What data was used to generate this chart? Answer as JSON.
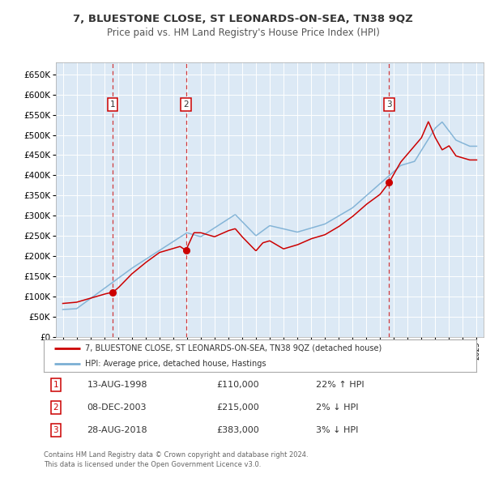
{
  "title": "7, BLUESTONE CLOSE, ST LEONARDS-ON-SEA, TN38 9QZ",
  "subtitle": "Price paid vs. HM Land Registry's House Price Index (HPI)",
  "bg_color": "#dce9f5",
  "grid_color": "#ffffff",
  "hpi_color": "#7bafd4",
  "price_color": "#cc0000",
  "ylim": [
    0,
    680000
  ],
  "yticks": [
    0,
    50000,
    100000,
    150000,
    200000,
    250000,
    300000,
    350000,
    400000,
    450000,
    500000,
    550000,
    600000,
    650000
  ],
  "sales": [
    {
      "year": 1998.62,
      "price": 110000,
      "label": "1"
    },
    {
      "year": 2003.93,
      "price": 215000,
      "label": "2"
    },
    {
      "year": 2018.66,
      "price": 383000,
      "label": "3"
    }
  ],
  "legend_entries": [
    "7, BLUESTONE CLOSE, ST LEONARDS-ON-SEA, TN38 9QZ (detached house)",
    "HPI: Average price, detached house, Hastings"
  ],
  "table_rows": [
    {
      "num": "1",
      "date": "13-AUG-1998",
      "price": "£110,000",
      "hpi": "22% ↑ HPI"
    },
    {
      "num": "2",
      "date": "08-DEC-2003",
      "price": "£215,000",
      "hpi": "2% ↓ HPI"
    },
    {
      "num": "3",
      "date": "28-AUG-2018",
      "price": "£383,000",
      "hpi": "3% ↓ HPI"
    }
  ],
  "footnote": "Contains HM Land Registry data © Crown copyright and database right 2024.\nThis data is licensed under the Open Government Licence v3.0.",
  "xmin": 1994.5,
  "xmax": 2025.5
}
